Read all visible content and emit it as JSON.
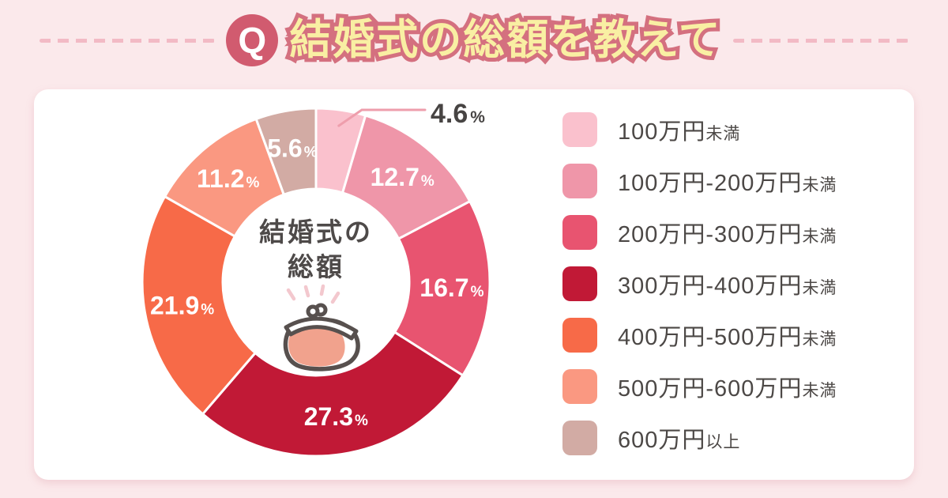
{
  "header": {
    "q_label": "Q",
    "title": "結婚式の総額を教えて"
  },
  "colors": {
    "background": "#FBE9EB",
    "card": "#FFFFFF",
    "q_badge": "#D15B6F",
    "title_fill": "#F9EFA3",
    "title_outline": "#D4707F",
    "dash_line": "#F2BAC5",
    "text_dark": "#4C4846",
    "slice_divider": "#FFFFFF",
    "callout_line": "#EE9EAC",
    "purse_outline": "#57504E",
    "purse_fill": "#F1A28D",
    "sparkle": "#F3C8CE"
  },
  "chart_data": {
    "type": "pie",
    "subtype": "donut",
    "title": "結婚式の総額",
    "center_label_lines": [
      "結婚式の",
      "総額"
    ],
    "unit": "%",
    "start_angle_deg": 0,
    "clockwise": true,
    "values_total": 100.0,
    "segments": [
      {
        "label": "100万円未満",
        "label_main": "100万円",
        "label_suffix": "未満",
        "value": 4.6,
        "value_label": "4.6",
        "color": "#FAC1CD",
        "label_style": "external"
      },
      {
        "label": "100万円-200万円未満",
        "label_main": "100万円-200万円",
        "label_suffix": "未満",
        "value": 12.7,
        "value_label": "12.7",
        "color": "#EF96A9",
        "label_style": "inside"
      },
      {
        "label": "200万円-300万円未満",
        "label_main": "200万円-300万円",
        "label_suffix": "未満",
        "value": 16.7,
        "value_label": "16.7",
        "color": "#E85470",
        "label_style": "inside"
      },
      {
        "label": "300万円-400万円未満",
        "label_main": "300万円-400万円",
        "label_suffix": "未満",
        "value": 27.3,
        "value_label": "27.3",
        "color": "#C11936",
        "label_style": "inside"
      },
      {
        "label": "400万円-500万円未満",
        "label_main": "400万円-500万円",
        "label_suffix": "未満",
        "value": 21.9,
        "value_label": "21.9",
        "color": "#F76A48",
        "label_style": "inside"
      },
      {
        "label": "500万円-600万円未満",
        "label_main": "500万円-600万円",
        "label_suffix": "未満",
        "value": 11.2,
        "value_label": "11.2",
        "color": "#FA9881",
        "label_style": "inside"
      },
      {
        "label": "600万円以上",
        "label_main": "600万円",
        "label_suffix": "以上",
        "value": 5.6,
        "value_label": "5.6",
        "color": "#D2ABA4",
        "label_style": "inside"
      }
    ],
    "legend_position": "right",
    "center_icon": "coin-purse"
  }
}
